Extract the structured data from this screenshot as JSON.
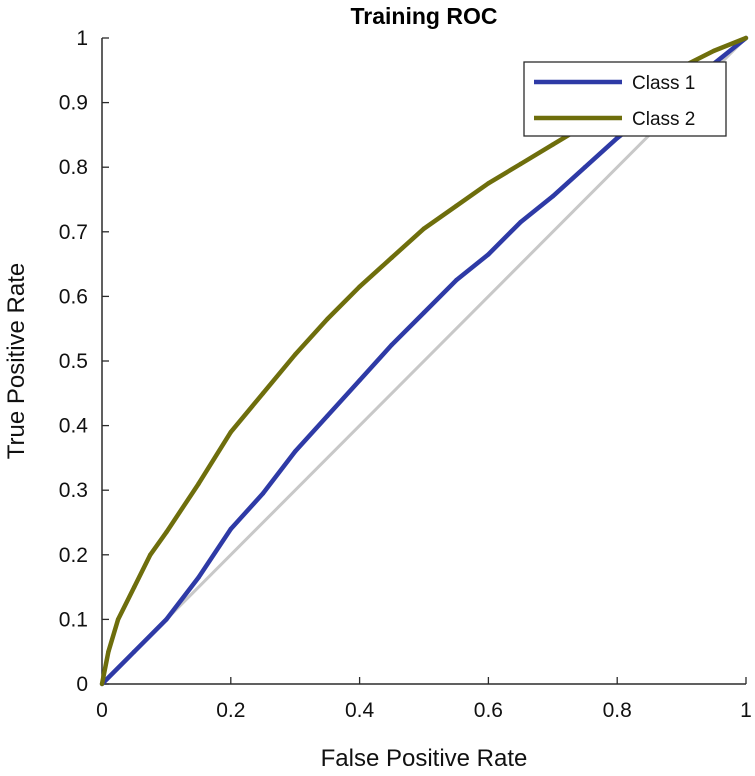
{
  "chart_data": {
    "type": "line",
    "title": "Training ROC",
    "xlabel": "False Positive Rate",
    "ylabel": "True Positive Rate",
    "xlim": [
      0,
      1
    ],
    "ylim": [
      0,
      1
    ],
    "x_ticks": [
      0,
      0.2,
      0.4,
      0.6,
      0.8,
      1
    ],
    "x_tick_labels": [
      "0",
      "0.2",
      "0.4",
      "0.6",
      "0.8",
      "1"
    ],
    "y_ticks": [
      0,
      0.1,
      0.2,
      0.3,
      0.4,
      0.5,
      0.6,
      0.7,
      0.8,
      0.9,
      1
    ],
    "y_tick_labels": [
      "0",
      "0.1",
      "0.2",
      "0.3",
      "0.4",
      "0.5",
      "0.6",
      "0.7",
      "0.8",
      "0.9",
      "1"
    ],
    "grid": false,
    "legend_position": "top-right",
    "reference_line": {
      "name": "chance",
      "color": "#c8c8c8",
      "x": [
        0,
        1
      ],
      "y": [
        0,
        1
      ]
    },
    "series": [
      {
        "name": "Class 1",
        "color": "#2e3aa6",
        "x": [
          0,
          0.05,
          0.1,
          0.15,
          0.2,
          0.25,
          0.3,
          0.35,
          0.4,
          0.45,
          0.5,
          0.55,
          0.6,
          0.65,
          0.7,
          0.75,
          0.8,
          0.85,
          0.9,
          0.95,
          1
        ],
        "y": [
          0,
          0.05,
          0.1,
          0.165,
          0.24,
          0.295,
          0.36,
          0.415,
          0.47,
          0.525,
          0.575,
          0.625,
          0.665,
          0.715,
          0.755,
          0.8,
          0.845,
          0.885,
          0.925,
          0.96,
          1
        ]
      },
      {
        "name": "Class 2",
        "color": "#6e6e0c",
        "x": [
          0,
          0.01,
          0.025,
          0.05,
          0.075,
          0.1,
          0.15,
          0.2,
          0.25,
          0.3,
          0.35,
          0.4,
          0.45,
          0.5,
          0.55,
          0.6,
          0.65,
          0.7,
          0.75,
          0.8,
          0.85,
          0.9,
          0.95,
          1
        ],
        "y": [
          0,
          0.05,
          0.1,
          0.15,
          0.2,
          0.235,
          0.31,
          0.39,
          0.45,
          0.51,
          0.565,
          0.615,
          0.66,
          0.705,
          0.74,
          0.775,
          0.805,
          0.835,
          0.865,
          0.89,
          0.92,
          0.955,
          0.98,
          1
        ]
      }
    ]
  }
}
